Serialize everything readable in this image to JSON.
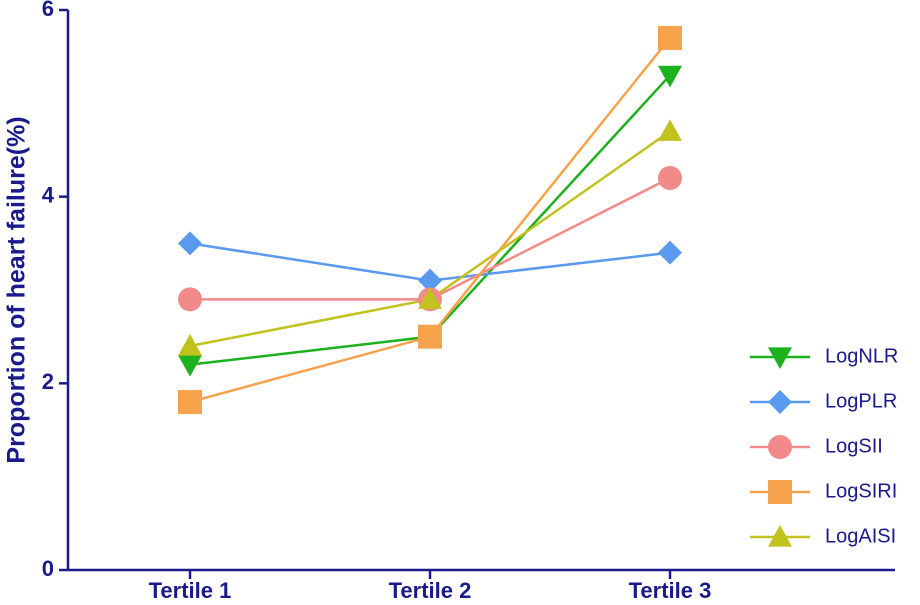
{
  "chart_data": {
    "type": "line",
    "y_label": "Proportion of heart failure(%)",
    "categories": [
      "Tertile 1",
      "Tertile 2",
      "Tertile 3"
    ],
    "series": [
      {
        "name": "LogNLR",
        "color": "#1db11d",
        "marker": "triangle-down",
        "values": [
          2.2,
          2.5,
          5.3
        ]
      },
      {
        "name": "LogPLR",
        "color": "#5a9aee",
        "marker": "diamond",
        "values": [
          3.5,
          3.1,
          3.4
        ]
      },
      {
        "name": "LogSII",
        "color": "#f28a8a",
        "marker": "circle",
        "values": [
          2.9,
          2.9,
          4.2
        ]
      },
      {
        "name": "LogSIRI",
        "color": "#f7a24c",
        "marker": "square",
        "values": [
          1.8,
          2.5,
          5.7
        ]
      },
      {
        "name": "LogAISI",
        "color": "#c2c21e",
        "marker": "triangle-up",
        "values": [
          2.4,
          2.9,
          4.7
        ]
      }
    ],
    "ylim": [
      0,
      6
    ],
    "yticks": [
      0,
      2,
      4,
      6
    ],
    "legend": "right"
  }
}
